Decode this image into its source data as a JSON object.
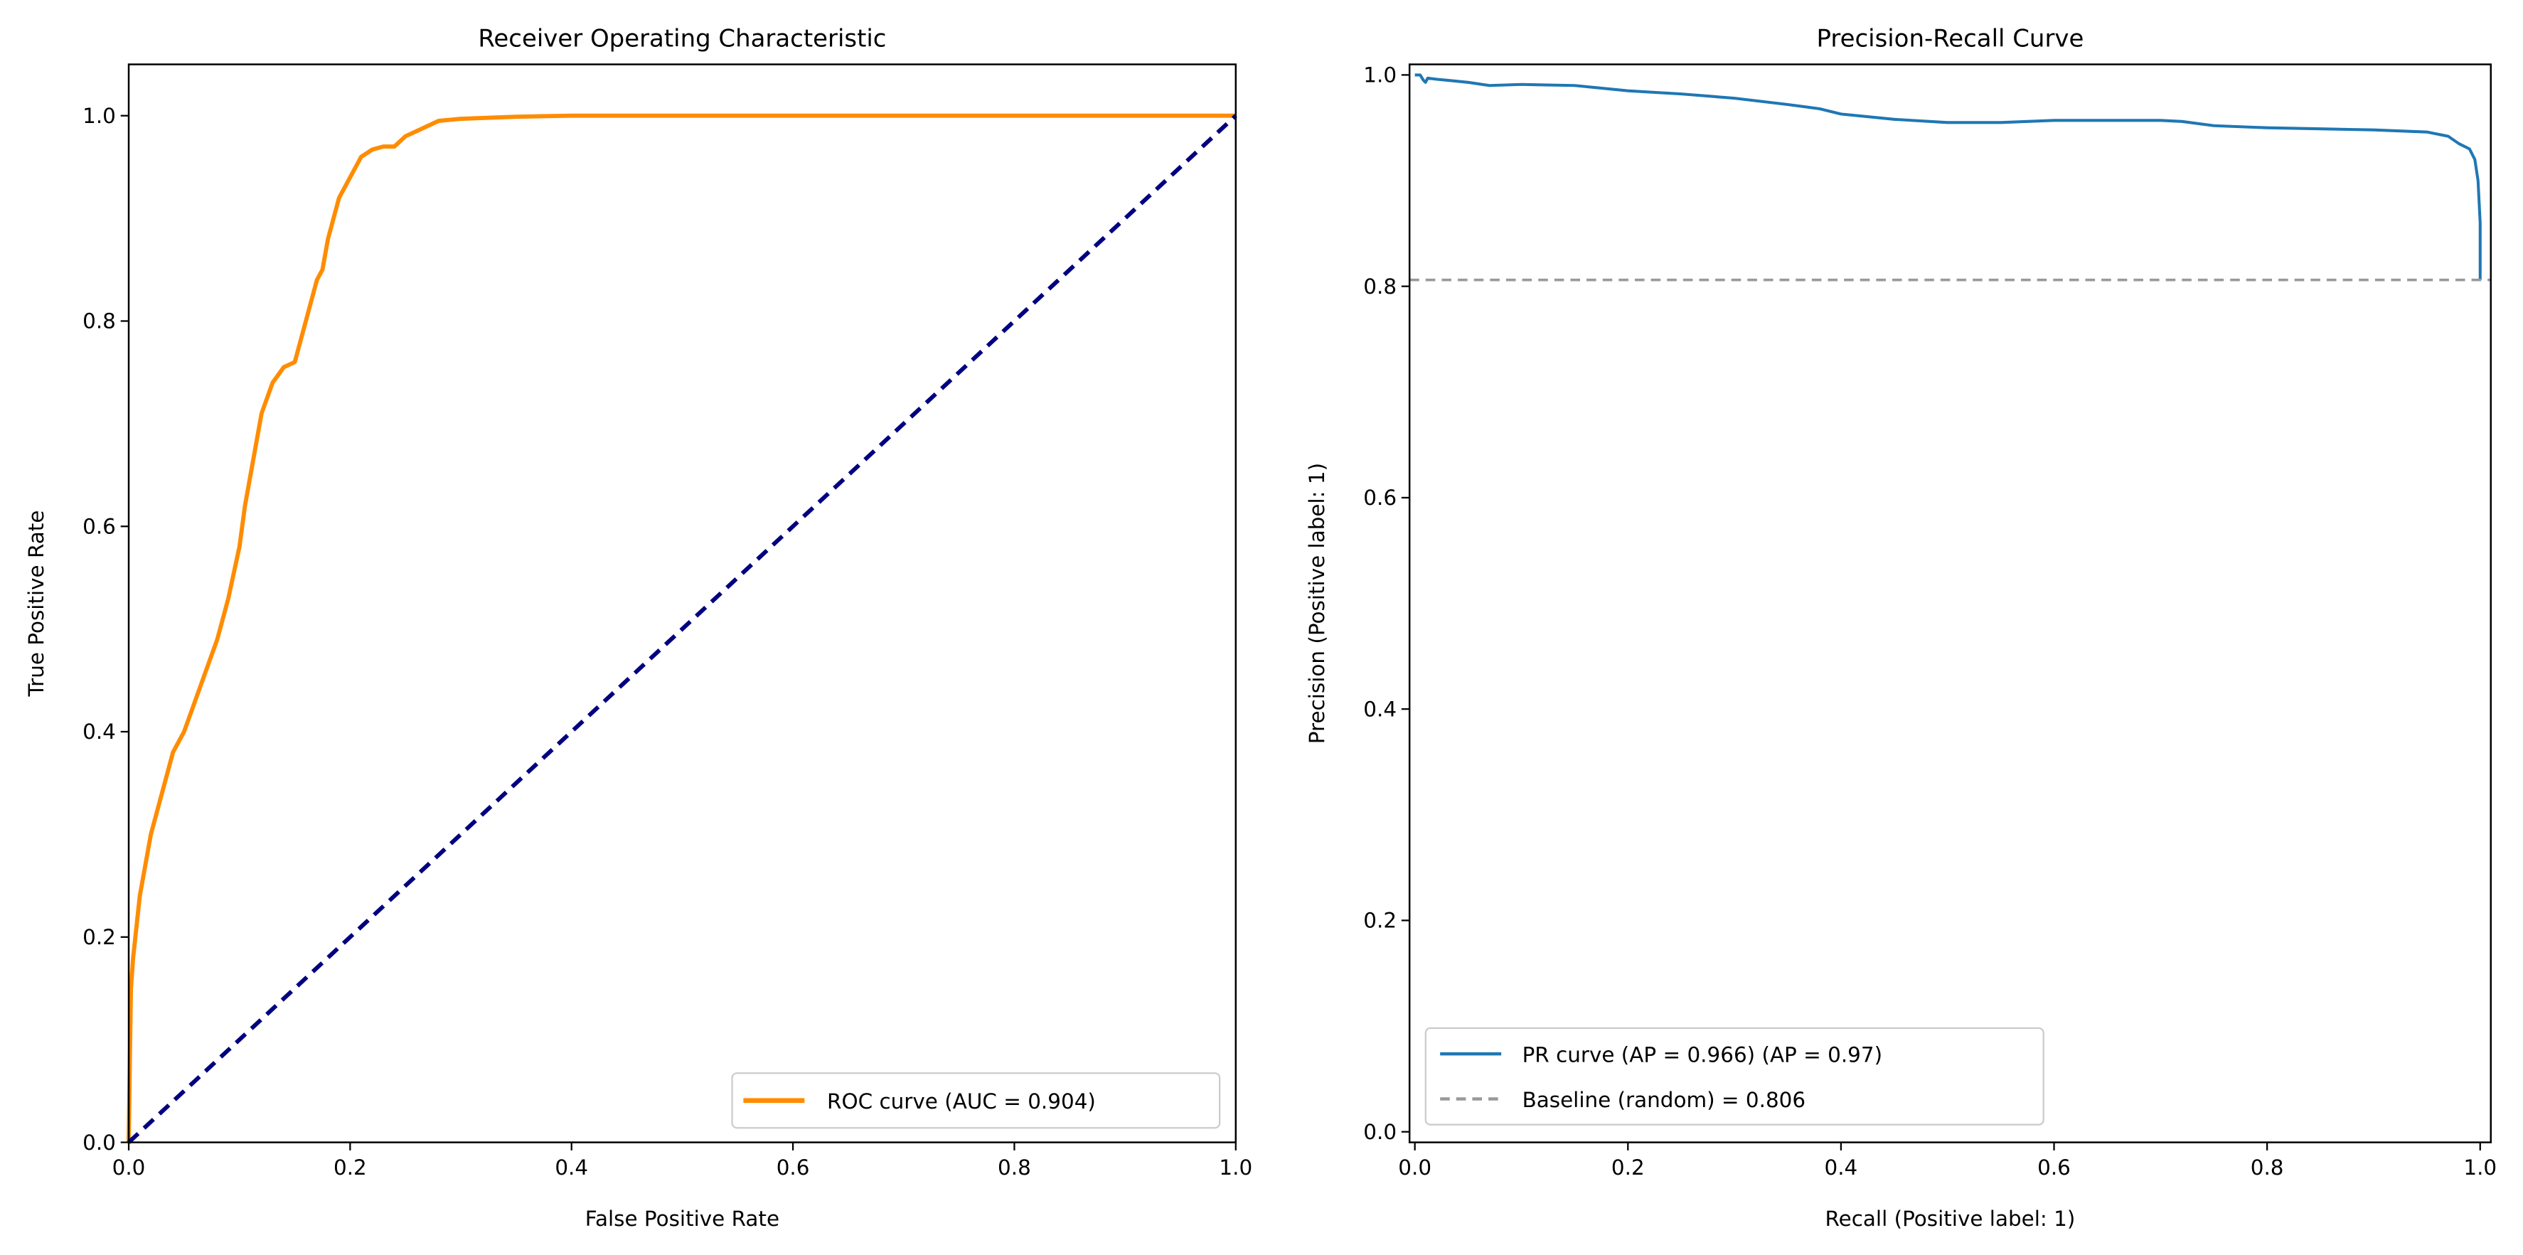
{
  "chart_data": [
    {
      "type": "line",
      "title": "Receiver Operating Characteristic",
      "xlabel": "False Positive Rate",
      "ylabel": "True Positive Rate",
      "xlim": [
        0.0,
        1.0
      ],
      "ylim": [
        0.0,
        1.05
      ],
      "xticks": [
        0.0,
        0.2,
        0.4,
        0.6,
        0.8,
        1.0
      ],
      "yticks": [
        0.0,
        0.2,
        0.4,
        0.6,
        0.8,
        1.0
      ],
      "xtick_labels": [
        "0.0",
        "0.2",
        "0.4",
        "0.6",
        "0.8",
        "1.0"
      ],
      "ytick_labels": [
        "0.0",
        "0.2",
        "0.4",
        "0.6",
        "0.8",
        "1.0"
      ],
      "grid": false,
      "legend_position": "lower-right",
      "series": [
        {
          "name": "ROC curve (AUC = 0.904)",
          "color": "#ff8c00",
          "style": "solid",
          "x": [
            0.0,
            0.001,
            0.002,
            0.004,
            0.006,
            0.008,
            0.01,
            0.015,
            0.02,
            0.025,
            0.03,
            0.035,
            0.04,
            0.05,
            0.06,
            0.07,
            0.08,
            0.09,
            0.1,
            0.105,
            0.11,
            0.115,
            0.12,
            0.13,
            0.14,
            0.15,
            0.16,
            0.17,
            0.175,
            0.18,
            0.19,
            0.2,
            0.21,
            0.22,
            0.23,
            0.24,
            0.25,
            0.26,
            0.27,
            0.28,
            0.3,
            0.35,
            0.4,
            0.5,
            0.7,
            1.0
          ],
          "y": [
            0.0,
            0.08,
            0.15,
            0.18,
            0.2,
            0.22,
            0.24,
            0.27,
            0.3,
            0.32,
            0.34,
            0.36,
            0.38,
            0.4,
            0.43,
            0.46,
            0.49,
            0.53,
            0.58,
            0.62,
            0.65,
            0.68,
            0.71,
            0.74,
            0.755,
            0.76,
            0.8,
            0.84,
            0.85,
            0.88,
            0.92,
            0.94,
            0.96,
            0.967,
            0.97,
            0.97,
            0.98,
            0.985,
            0.99,
            0.995,
            0.997,
            0.999,
            1.0,
            1.0,
            1.0,
            1.0
          ]
        },
        {
          "name": "",
          "color": "#000080",
          "style": "dashed",
          "x": [
            0.0,
            1.0
          ],
          "y": [
            0.0,
            1.0
          ]
        }
      ]
    },
    {
      "type": "line",
      "title": "Precision-Recall Curve",
      "xlabel": "Recall (Positive label: 1)",
      "ylabel": "Precision (Positive label: 1)",
      "xlim": [
        -0.005,
        1.01
      ],
      "ylim": [
        -0.01,
        1.01
      ],
      "xticks": [
        0.0,
        0.2,
        0.4,
        0.6,
        0.8,
        1.0
      ],
      "yticks": [
        0.0,
        0.2,
        0.4,
        0.6,
        0.8,
        1.0
      ],
      "xtick_labels": [
        "0.0",
        "0.2",
        "0.4",
        "0.6",
        "0.8",
        "1.0"
      ],
      "ytick_labels": [
        "0.0",
        "0.2",
        "0.4",
        "0.6",
        "0.8",
        "1.0"
      ],
      "grid": false,
      "legend_position": "lower-left",
      "series": [
        {
          "name": "PR curve (AP = 0.966) (AP = 0.97)",
          "color": "#1f77b4",
          "style": "solid",
          "x": [
            0.0,
            0.005,
            0.008,
            0.01,
            0.012,
            0.02,
            0.03,
            0.05,
            0.07,
            0.1,
            0.15,
            0.2,
            0.25,
            0.3,
            0.35,
            0.38,
            0.4,
            0.45,
            0.5,
            0.55,
            0.6,
            0.65,
            0.7,
            0.72,
            0.75,
            0.8,
            0.85,
            0.9,
            0.95,
            0.97,
            0.98,
            0.99,
            0.995,
            0.998,
            1.0,
            1.0
          ],
          "y": [
            1.0,
            1.0,
            0.995,
            0.993,
            0.997,
            0.996,
            0.995,
            0.993,
            0.99,
            0.991,
            0.99,
            0.985,
            0.982,
            0.978,
            0.972,
            0.968,
            0.963,
            0.958,
            0.955,
            0.955,
            0.957,
            0.957,
            0.957,
            0.956,
            0.952,
            0.95,
            0.949,
            0.948,
            0.946,
            0.942,
            0.935,
            0.93,
            0.92,
            0.9,
            0.86,
            0.806
          ]
        },
        {
          "name": "Baseline (random) = 0.806",
          "color": "#999999",
          "style": "dashed",
          "x": [
            -0.005,
            1.01
          ],
          "y": [
            0.806,
            0.806
          ]
        }
      ]
    }
  ]
}
